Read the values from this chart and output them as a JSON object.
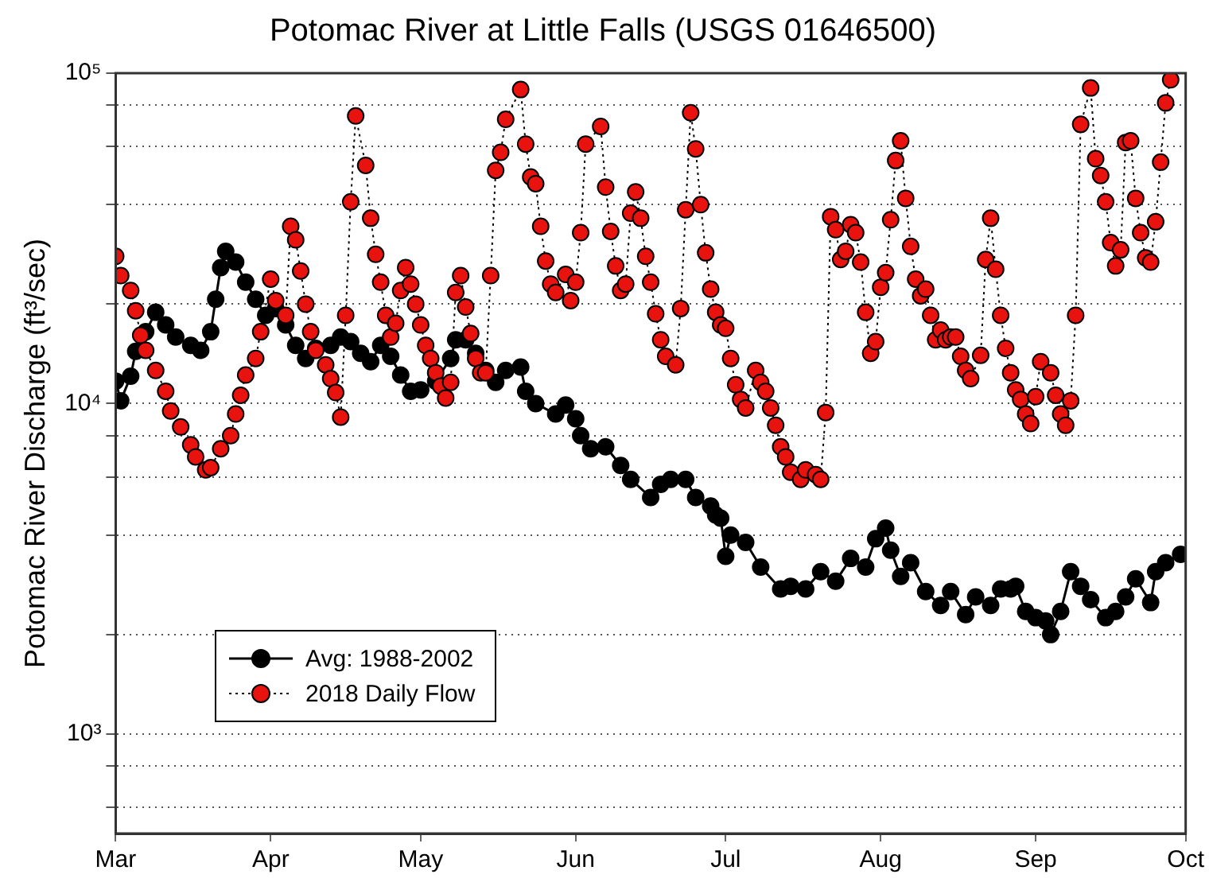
{
  "chart_data": {
    "type": "line",
    "title": "Potomac River at Little Falls (USGS 01646500)",
    "ylabel": "Potomac River Discharge (ft³/sec)",
    "log": "y",
    "grid": "y",
    "legend": "bottom left",
    "marker": "circle",
    "xlim": [
      "--03-01",
      "--10-01"
    ],
    "xticks": [
      {
        "value": "--03-01",
        "label": "Mar"
      },
      {
        "value": "--04-01",
        "label": "Apr"
      },
      {
        "value": "--05-01",
        "label": "May"
      },
      {
        "value": "--06-01",
        "label": "Jun"
      },
      {
        "value": "--07-01",
        "label": "Jul"
      },
      {
        "value": "--08-01",
        "label": "Aug"
      },
      {
        "value": "--09-01",
        "label": "Sep"
      },
      {
        "value": "--10-01",
        "label": "Oct"
      }
    ],
    "ylim": [
      500,
      100000
    ],
    "yticks": [
      {
        "value": 600,
        "label": null
      },
      {
        "value": 800,
        "label": null
      },
      {
        "value": 1000,
        "label": "10³"
      },
      {
        "value": 2000,
        "label": null
      },
      {
        "value": 4000,
        "label": null
      },
      {
        "value": 6000,
        "label": null
      },
      {
        "value": 8000,
        "label": null
      },
      {
        "value": 10000,
        "label": "10⁴"
      },
      {
        "value": 20000,
        "label": null
      },
      {
        "value": 40000,
        "label": null
      },
      {
        "value": 60000,
        "label": null
      },
      {
        "value": 80000,
        "label": null
      },
      {
        "value": 100000,
        "label": "10⁵"
      }
    ],
    "series": [
      {
        "name": "Avg: 1988-2002",
        "color": "#000000",
        "line_style": "solid",
        "x": [
          "--03-01",
          "--03-02",
          "--03-04",
          "--03-05",
          "--03-07",
          "--03-09",
          "--03-11",
          "--03-13",
          "--03-16",
          "--03-18",
          "--03-20",
          "--03-21",
          "--03-22",
          "--03-23",
          "--03-25",
          "--03-27",
          "--03-29",
          "--03-31",
          "--04-02",
          "--04-04",
          "--04-06",
          "--04-08",
          "--04-10",
          "--04-13",
          "--04-15",
          "--04-17",
          "--04-19",
          "--04-21",
          "--04-23",
          "--04-25",
          "--04-27",
          "--04-29",
          "--05-01",
          "--05-04",
          "--05-07",
          "--05-08",
          "--05-10",
          "--05-12",
          "--05-14",
          "--05-16",
          "--05-18",
          "--05-21",
          "--05-22",
          "--05-24",
          "--05-28",
          "--05-30",
          "--06-01",
          "--06-02",
          "--06-04",
          "--06-07",
          "--06-10",
          "--06-12",
          "--06-16",
          "--06-18",
          "--06-20",
          "--06-23",
          "--06-25",
          "--06-28",
          "--06-29",
          "--06-30",
          "--07-01",
          "--07-02",
          "--07-05",
          "--07-08",
          "--07-12",
          "--07-14",
          "--07-17",
          "--07-20",
          "--07-23",
          "--07-26",
          "--07-29",
          "--07-31",
          "--08-02",
          "--08-03",
          "--08-05",
          "--08-07",
          "--08-10",
          "--08-13",
          "--08-15",
          "--08-18",
          "--08-20",
          "--08-23",
          "--08-25",
          "--08-27",
          "--08-28",
          "--08-30",
          "--09-01",
          "--09-03",
          "--09-04",
          "--09-06",
          "--09-08",
          "--09-10",
          "--09-12",
          "--09-15",
          "--09-17",
          "--09-19",
          "--09-21",
          "--09-24",
          "--09-25",
          "--09-27",
          "--09-30"
        ],
        "values": [
          11700,
          10200,
          12100,
          14400,
          16500,
          18900,
          17300,
          15900,
          15000,
          14500,
          16500,
          20700,
          25800,
          28900,
          26800,
          23300,
          20700,
          18500,
          19400,
          17300,
          15000,
          13700,
          14700,
          15000,
          15900,
          15400,
          14200,
          13400,
          15000,
          13900,
          12200,
          10900,
          11000,
          11700,
          13700,
          15600,
          15600,
          14200,
          12600,
          11600,
          12600,
          12900,
          10900,
          10000,
          9300,
          9900,
          9000,
          8000,
          7300,
          7400,
          6500,
          5900,
          5200,
          5700,
          5900,
          5900,
          5200,
          4900,
          4600,
          4500,
          3450,
          4000,
          3800,
          3200,
          2750,
          2800,
          2750,
          3100,
          2900,
          3400,
          3200,
          3900,
          4200,
          3600,
          3000,
          3300,
          2700,
          2450,
          2700,
          2300,
          2600,
          2450,
          2750,
          2750,
          2800,
          2350,
          2250,
          2200,
          2000,
          2350,
          3100,
          2800,
          2550,
          2250,
          2350,
          2600,
          2950,
          2500,
          3100,
          3300,
          3500
        ]
      },
      {
        "name": "2018 Daily Flow",
        "color": "#e8130e",
        "line_style": "dotted",
        "x": [
          "--03-01",
          "--03-02",
          "--03-04",
          "--03-05",
          "--03-06",
          "--03-07",
          "--03-09",
          "--03-11",
          "--03-12",
          "--03-14",
          "--03-16",
          "--03-17",
          "--03-19",
          "--03-20",
          "--03-22",
          "--03-24",
          "--03-25",
          "--03-26",
          "--03-27",
          "--03-29",
          "--03-30",
          "--04-01",
          "--04-02",
          "--04-04",
          "--04-05",
          "--04-06",
          "--04-07",
          "--04-08",
          "--04-09",
          "--04-10",
          "--04-12",
          "--04-13",
          "--04-14",
          "--04-15",
          "--04-16",
          "--04-17",
          "--04-18",
          "--04-20",
          "--04-21",
          "--04-22",
          "--04-23",
          "--04-24",
          "--04-25",
          "--04-26",
          "--04-27",
          "--04-28",
          "--04-29",
          "--04-30",
          "--05-01",
          "--05-02",
          "--05-03",
          "--05-04",
          "--05-05",
          "--05-06",
          "--05-07",
          "--05-08",
          "--05-09",
          "--05-10",
          "--05-11",
          "--05-12",
          "--05-13",
          "--05-14",
          "--05-15",
          "--05-16",
          "--05-17",
          "--05-18",
          "--05-21",
          "--05-22",
          "--05-23",
          "--05-24",
          "--05-25",
          "--05-26",
          "--05-27",
          "--05-28",
          "--05-30",
          "--05-31",
          "--06-01",
          "--06-02",
          "--06-03",
          "--06-06",
          "--06-07",
          "--06-08",
          "--06-09",
          "--06-10",
          "--06-11",
          "--06-12",
          "--06-13",
          "--06-14",
          "--06-15",
          "--06-16",
          "--06-17",
          "--06-18",
          "--06-19",
          "--06-21",
          "--06-22",
          "--06-23",
          "--06-24",
          "--06-25",
          "--06-26",
          "--06-27",
          "--06-28",
          "--06-29",
          "--06-30",
          "--07-01",
          "--07-02",
          "--07-03",
          "--07-04",
          "--07-05",
          "--07-07",
          "--07-08",
          "--07-09",
          "--07-10",
          "--07-11",
          "--07-12",
          "--07-13",
          "--07-14",
          "--07-16",
          "--07-17",
          "--07-19",
          "--07-20",
          "--07-21",
          "--07-22",
          "--07-23",
          "--07-24",
          "--07-25",
          "--07-26",
          "--07-27",
          "--07-28",
          "--07-29",
          "--07-30",
          "--07-31",
          "--08-01",
          "--08-02",
          "--08-03",
          "--08-04",
          "--08-05",
          "--08-06",
          "--08-07",
          "--08-08",
          "--08-09",
          "--08-10",
          "--08-11",
          "--08-12",
          "--08-13",
          "--08-14",
          "--08-15",
          "--08-16",
          "--08-17",
          "--08-18",
          "--08-19",
          "--08-21",
          "--08-22",
          "--08-23",
          "--08-24",
          "--08-25",
          "--08-26",
          "--08-27",
          "--08-28",
          "--08-29",
          "--08-30",
          "--08-31",
          "--09-01",
          "--09-02",
          "--09-04",
          "--09-05",
          "--09-06",
          "--09-07",
          "--09-08",
          "--09-09",
          "--09-10",
          "--09-12",
          "--09-13",
          "--09-14",
          "--09-15",
          "--09-16",
          "--09-17",
          "--09-18",
          "--09-19",
          "--09-20",
          "--09-21",
          "--09-22",
          "--09-23",
          "--09-24",
          "--09-25",
          "--09-26",
          "--09-27",
          "--09-28"
        ],
        "values": [
          27900,
          24400,
          22000,
          19100,
          16100,
          14500,
          12600,
          10900,
          9500,
          8500,
          7500,
          6900,
          6300,
          6400,
          7300,
          8000,
          9300,
          10600,
          12200,
          13700,
          16500,
          23800,
          20500,
          18500,
          34400,
          31300,
          25200,
          20000,
          16500,
          14500,
          13100,
          11900,
          10800,
          9100,
          18500,
          40800,
          74200,
          52600,
          36400,
          28300,
          23300,
          18500,
          15900,
          17500,
          22000,
          25800,
          23000,
          20000,
          17300,
          15000,
          13700,
          12400,
          11300,
          10400,
          11600,
          21700,
          24400,
          19600,
          16300,
          13700,
          12400,
          12400,
          24400,
          50800,
          57600,
          72500,
          89200,
          61000,
          48500,
          46300,
          34400,
          27000,
          23000,
          21700,
          24600,
          20500,
          23300,
          32900,
          61000,
          69000,
          45200,
          33200,
          26100,
          22000,
          23000,
          37700,
          43700,
          36400,
          27900,
          23300,
          18700,
          15600,
          13900,
          13100,
          19400,
          38600,
          75900,
          59000,
          40000,
          28600,
          22200,
          18900,
          17300,
          16900,
          13700,
          11400,
          10300,
          9700,
          12600,
          11600,
          10900,
          9700,
          8600,
          7400,
          6900,
          6200,
          5900,
          6300,
          6100,
          5900,
          9400,
          36800,
          33600,
          27300,
          28900,
          34800,
          32900,
          26800,
          18900,
          14200,
          15400,
          22500,
          24900,
          36000,
          54400,
          62400,
          41800,
          29900,
          23800,
          21200,
          22200,
          18500,
          15600,
          16700,
          15600,
          15900,
          15900,
          13900,
          12600,
          11900,
          14000,
          27300,
          36400,
          25500,
          18500,
          14700,
          12400,
          11000,
          10300,
          9300,
          8700,
          10500,
          13400,
          12400,
          10600,
          9300,
          8600,
          10200,
          18500,
          70000,
          90200,
          55100,
          49000,
          40800,
          30700,
          26100,
          29200,
          61700,
          62400,
          41800,
          32900,
          27600,
          26800,
          35500,
          53800,
          81300,
          95500
        ]
      }
    ]
  }
}
